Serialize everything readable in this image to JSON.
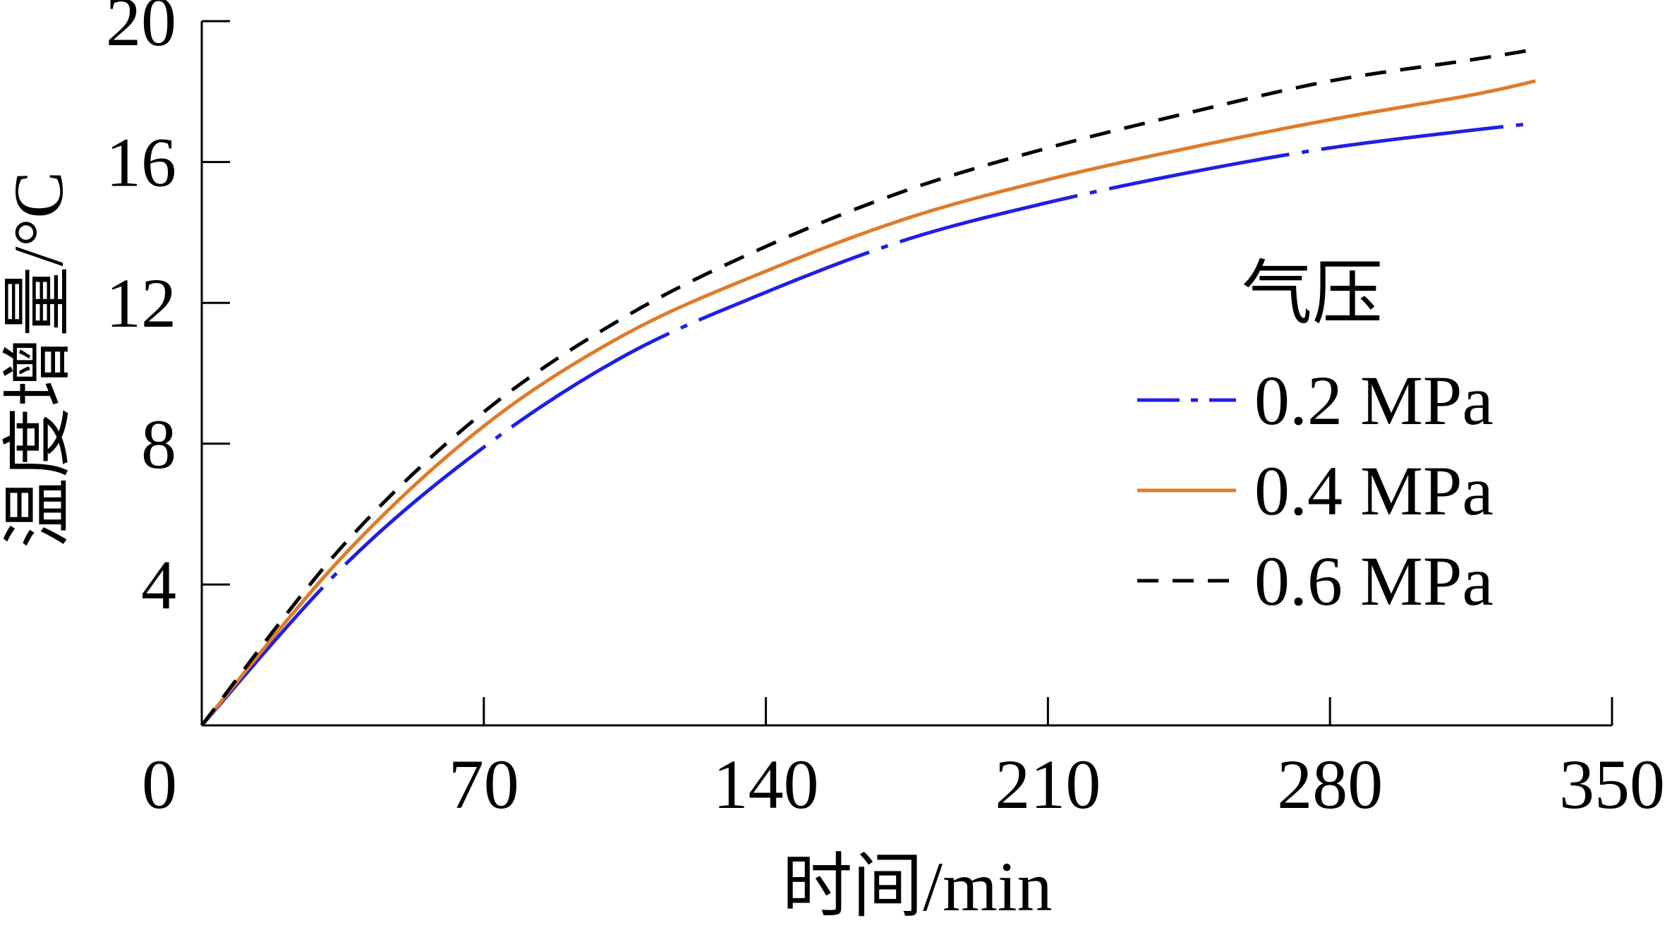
{
  "chart_data": {
    "type": "line",
    "title": "",
    "xlabel": "时间/min",
    "ylabel": "温度增量/°C",
    "xlim": [
      0,
      350
    ],
    "ylim": [
      0,
      20
    ],
    "xticks": [
      0,
      70,
      140,
      210,
      280,
      350
    ],
    "yticks": [
      4,
      8,
      12,
      16,
      20
    ],
    "xtick_labels": [
      "0",
      "70",
      "140",
      "210",
      "280",
      "350"
    ],
    "ytick_labels": [
      "4",
      "8",
      "12",
      "16",
      "20"
    ],
    "grid": false,
    "legend": {
      "title": "气压",
      "placement": "right"
    },
    "x": [
      0,
      35,
      70,
      105,
      140,
      175,
      210,
      245,
      280,
      315,
      331
    ],
    "series": [
      {
        "name": "0.2 MPa",
        "color": "#1f1fe6",
        "style": "dash-dot",
        "values": [
          0,
          4.5,
          7.9,
          10.5,
          12.3,
          13.8,
          14.85,
          15.7,
          16.4,
          16.9,
          17.1
        ]
      },
      {
        "name": "0.4 MPa",
        "color": "#e07b28",
        "style": "solid",
        "values": [
          0,
          4.8,
          8.5,
          11.1,
          12.9,
          14.4,
          15.5,
          16.4,
          17.2,
          17.9,
          18.3
        ]
      },
      {
        "name": "0.6 MPa",
        "color": "#000000",
        "style": "dashed",
        "values": [
          0,
          5.1,
          8.9,
          11.6,
          13.6,
          15.2,
          16.4,
          17.4,
          18.3,
          18.9,
          19.2
        ]
      }
    ]
  }
}
